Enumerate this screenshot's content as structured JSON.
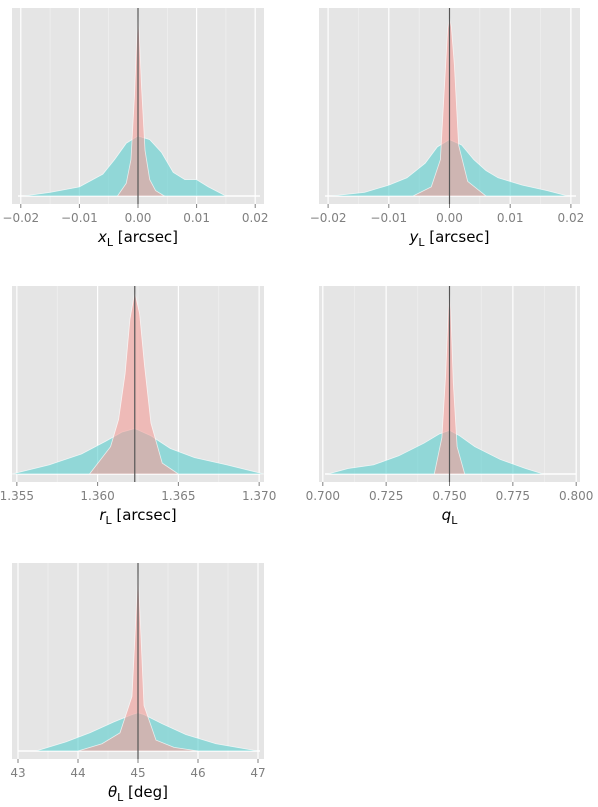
{
  "chart_data": [
    {
      "type": "area",
      "xlabel": {
        "sym": "x",
        "sub": "L",
        "unit": " [arcsec]"
      },
      "xlim": [
        -0.0215,
        0.0215
      ],
      "ticks": [
        -0.02,
        -0.01,
        0.0,
        0.01,
        0.02
      ],
      "tick_labels": [
        "−0.02",
        "−0.01",
        "0.00",
        "0.01",
        "0.02"
      ],
      "true_value": 0.0,
      "grid": true,
      "series": [
        {
          "role": "broad",
          "color": "#5ecfcf",
          "x": [
            -0.0195,
            -0.015,
            -0.01,
            -0.006,
            -0.004,
            -0.002,
            0.0,
            0.002,
            0.004,
            0.006,
            0.008,
            0.01,
            0.012,
            0.015
          ],
          "y": [
            0.0,
            0.02,
            0.05,
            0.12,
            0.2,
            0.29,
            0.33,
            0.31,
            0.24,
            0.13,
            0.09,
            0.09,
            0.05,
            0.0
          ]
        },
        {
          "role": "narrow",
          "color": "#f4a09b",
          "x": [
            -0.0035,
            -0.002,
            -0.0012,
            -0.0006,
            -0.0002,
            0.0,
            0.0002,
            0.0006,
            0.0012,
            0.002,
            0.003,
            0.0045
          ],
          "y": [
            0.0,
            0.07,
            0.2,
            0.55,
            0.88,
            1.0,
            0.9,
            0.6,
            0.25,
            0.09,
            0.03,
            0.0
          ]
        }
      ]
    },
    {
      "type": "area",
      "xlabel": {
        "sym": "y",
        "sub": "L",
        "unit": " [arcsec]"
      },
      "xlim": [
        -0.0215,
        0.0215
      ],
      "ticks": [
        -0.02,
        -0.01,
        0.0,
        0.01,
        0.02
      ],
      "tick_labels": [
        "−0.02",
        "−0.01",
        "0.00",
        "0.01",
        "0.02"
      ],
      "true_value": 0.0,
      "grid": true,
      "series": [
        {
          "role": "broad",
          "color": "#5ecfcf",
          "x": [
            -0.0195,
            -0.014,
            -0.01,
            -0.007,
            -0.004,
            -0.002,
            0.0,
            0.002,
            0.004,
            0.006,
            0.008,
            0.012,
            0.016,
            0.0195
          ],
          "y": [
            0.0,
            0.02,
            0.06,
            0.1,
            0.18,
            0.27,
            0.31,
            0.28,
            0.2,
            0.14,
            0.1,
            0.06,
            0.03,
            0.0
          ]
        },
        {
          "role": "narrow",
          "color": "#f4a09b",
          "x": [
            -0.006,
            -0.003,
            -0.0015,
            -0.0008,
            -0.0003,
            0.0,
            0.0003,
            0.0008,
            0.0015,
            0.003,
            0.006
          ],
          "y": [
            0.0,
            0.05,
            0.2,
            0.62,
            0.92,
            0.98,
            0.93,
            0.72,
            0.28,
            0.08,
            0.0
          ]
        }
      ]
    },
    {
      "type": "area",
      "xlabel": {
        "sym": "r",
        "sub": "L",
        "unit": " [arcsec]"
      },
      "xlim": [
        1.3547,
        1.3703
      ],
      "ticks": [
        1.355,
        1.36,
        1.365,
        1.37
      ],
      "tick_labels": [
        "1.355",
        "1.360",
        "1.365",
        "1.370"
      ],
      "true_value": 1.3623,
      "grid": true,
      "series": [
        {
          "role": "broad",
          "color": "#5ecfcf",
          "x": [
            1.3547,
            1.357,
            1.359,
            1.3605,
            1.3615,
            1.3623,
            1.3633,
            1.3645,
            1.366,
            1.368,
            1.3703
          ],
          "y": [
            0.0,
            0.05,
            0.11,
            0.18,
            0.23,
            0.25,
            0.21,
            0.14,
            0.09,
            0.05,
            0.0
          ]
        },
        {
          "role": "narrow",
          "color": "#f4a09b",
          "x": [
            1.3595,
            1.3608,
            1.3613,
            1.3617,
            1.362,
            1.3623,
            1.3626,
            1.3629,
            1.3633,
            1.364,
            1.365
          ],
          "y": [
            0.0,
            0.15,
            0.3,
            0.55,
            0.85,
            1.0,
            0.88,
            0.6,
            0.28,
            0.06,
            0.0
          ]
        }
      ]
    },
    {
      "type": "area",
      "xlabel": {
        "sym": "q",
        "sub": "L",
        "unit": ""
      },
      "xlim": [
        0.6985,
        0.8015
      ],
      "ticks": [
        0.7,
        0.725,
        0.75,
        0.775,
        0.8
      ],
      "tick_labels": [
        "0.700",
        "0.725",
        "0.750",
        "0.775",
        "0.800"
      ],
      "true_value": 0.75,
      "grid": true,
      "series": [
        {
          "role": "broad",
          "color": "#5ecfcf",
          "x": [
            0.702,
            0.71,
            0.72,
            0.73,
            0.74,
            0.746,
            0.75,
            0.754,
            0.76,
            0.77,
            0.78,
            0.787
          ],
          "y": [
            0.0,
            0.03,
            0.05,
            0.1,
            0.17,
            0.22,
            0.24,
            0.21,
            0.15,
            0.08,
            0.03,
            0.0
          ]
        },
        {
          "role": "narrow",
          "color": "#f4a09b",
          "x": [
            0.744,
            0.747,
            0.7485,
            0.7495,
            0.75,
            0.7505,
            0.7515,
            0.753,
            0.756
          ],
          "y": [
            0.0,
            0.2,
            0.55,
            0.9,
            1.0,
            0.9,
            0.5,
            0.15,
            0.0
          ]
        }
      ]
    },
    {
      "type": "area",
      "xlabel": {
        "sym": "θ",
        "sub": "L",
        "unit": " [deg]"
      },
      "xlim": [
        42.9,
        47.1
      ],
      "ticks": [
        43,
        44,
        45,
        46,
        47
      ],
      "tick_labels": [
        "43",
        "44",
        "45",
        "46",
        "47"
      ],
      "true_value": 45.0,
      "grid": true,
      "series": [
        {
          "role": "broad",
          "color": "#5ecfcf",
          "x": [
            43.3,
            43.8,
            44.2,
            44.6,
            44.9,
            45.0,
            45.1,
            45.4,
            45.8,
            46.3,
            47.0
          ],
          "y": [
            0.0,
            0.05,
            0.1,
            0.16,
            0.2,
            0.21,
            0.2,
            0.15,
            0.09,
            0.04,
            0.0
          ]
        },
        {
          "role": "narrow",
          "color": "#f4a09b",
          "x": [
            44.0,
            44.4,
            44.7,
            44.9,
            44.96,
            45.0,
            45.04,
            45.1,
            45.3,
            45.6,
            46.0
          ],
          "y": [
            0.0,
            0.04,
            0.1,
            0.3,
            0.7,
            1.0,
            0.7,
            0.25,
            0.06,
            0.02,
            0.0
          ]
        }
      ]
    }
  ]
}
